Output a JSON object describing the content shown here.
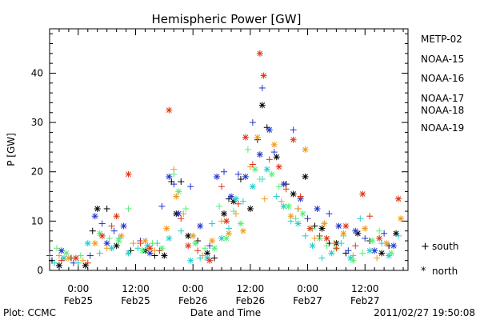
{
  "chart_data": {
    "type": "scatter",
    "title": "Hemispheric Power [GW]",
    "ylabel": "P [GW]",
    "xlabel": "Date and Time",
    "footer_left": "Plot: CCMC",
    "footer_right": "2011/02/27 19:50:08",
    "ylim": [
      0,
      49
    ],
    "yticks": [
      0,
      10,
      20,
      30,
      40
    ],
    "x_unit": "hours since 2011-02-24 18:00",
    "xlim": [
      0,
      75
    ],
    "xticks": [
      {
        "x": 6,
        "time": "0:00",
        "date": "Feb25"
      },
      {
        "x": 18,
        "time": "12:00",
        "date": "Feb25"
      },
      {
        "x": 30,
        "time": "0:00",
        "date": "Feb26"
      },
      {
        "x": 42,
        "time": "12:00",
        "date": "Feb26"
      },
      {
        "x": 54,
        "time": "0:00",
        "date": "Feb27"
      },
      {
        "x": 66,
        "time": "12:00",
        "date": "Feb27"
      }
    ],
    "series": [
      {
        "name": "METP-02",
        "color": "#000000"
      },
      {
        "name": "NOAA-15",
        "color": "#2233cc"
      },
      {
        "name": "NOAA-16",
        "color": "#22cccc"
      },
      {
        "name": "NOAA-17",
        "color": "#55ee77"
      },
      {
        "name": "NOAA-18",
        "color": "#ee9922"
      },
      {
        "name": "NOAA-19",
        "color": "#dd3311"
      }
    ],
    "markers": [
      {
        "symbol": "+",
        "label": "south"
      },
      {
        "symbol": "*",
        "label": "north"
      }
    ],
    "points": [
      [
        0,
        "+",
        0.5,
        2.0
      ],
      [
        0,
        "*",
        2.0,
        1.0
      ],
      [
        0,
        "+",
        4.5,
        2.5
      ],
      [
        0,
        "*",
        7.5,
        1.0
      ],
      [
        0,
        "+",
        9.0,
        8.0
      ],
      [
        0,
        "*",
        10.0,
        12.5
      ],
      [
        0,
        "+",
        12.0,
        12.5
      ],
      [
        0,
        "*",
        14.0,
        5.0
      ],
      [
        0,
        "+",
        17.0,
        4.0
      ],
      [
        0,
        "*",
        20.0,
        4.0
      ],
      [
        0,
        "+",
        22.0,
        3.0
      ],
      [
        0,
        "*",
        24.0,
        3.0
      ],
      [
        0,
        "+",
        25.5,
        18.0
      ],
      [
        0,
        "*",
        26.5,
        11.5
      ],
      [
        0,
        "+",
        27.5,
        18.0
      ],
      [
        0,
        "*",
        29.0,
        7.0
      ],
      [
        0,
        "+",
        31.0,
        6.0
      ],
      [
        0,
        "*",
        33.0,
        3.5
      ],
      [
        0,
        "+",
        34.5,
        2.5
      ],
      [
        0,
        "*",
        36.5,
        11.5
      ],
      [
        0,
        "+",
        37.5,
        14.5
      ],
      [
        0,
        "*",
        38.5,
        14.0
      ],
      [
        0,
        "+",
        40.0,
        18.5
      ],
      [
        0,
        "*",
        42.0,
        12.5
      ],
      [
        0,
        "+",
        43.5,
        26.5
      ],
      [
        0,
        "*",
        44.5,
        33.5
      ],
      [
        0,
        "+",
        45.5,
        29.0
      ],
      [
        0,
        "*",
        47.5,
        23.0
      ],
      [
        0,
        "+",
        49.5,
        17.5
      ],
      [
        0,
        "*",
        51.0,
        15.5
      ],
      [
        0,
        "+",
        52.0,
        12.5
      ],
      [
        0,
        "*",
        53.5,
        19.0
      ],
      [
        0,
        "+",
        55.5,
        9.0
      ],
      [
        0,
        "*",
        57.0,
        8.5
      ],
      [
        0,
        "+",
        58.5,
        5.5
      ],
      [
        0,
        "*",
        60.0,
        5.5
      ],
      [
        0,
        "+",
        62.0,
        3.5
      ],
      [
        0,
        "*",
        64.5,
        7.5
      ],
      [
        0,
        "+",
        67.0,
        6.0
      ],
      [
        0,
        "*",
        69.5,
        3.5
      ],
      [
        0,
        "+",
        71.0,
        5.0
      ],
      [
        0,
        "*",
        72.5,
        7.5
      ],
      [
        1,
        "+",
        0.0,
        3.0
      ],
      [
        1,
        "*",
        2.5,
        4.0
      ],
      [
        1,
        "+",
        5.0,
        1.5
      ],
      [
        1,
        "+",
        8.5,
        3.0
      ],
      [
        1,
        "*",
        9.5,
        11.0
      ],
      [
        1,
        "+",
        11.0,
        9.5
      ],
      [
        1,
        "*",
        12.0,
        5.5
      ],
      [
        1,
        "+",
        13.5,
        8.0
      ],
      [
        1,
        "*",
        15.5,
        9.0
      ],
      [
        1,
        "+",
        19.0,
        6.0
      ],
      [
        1,
        "*",
        21.0,
        3.5
      ],
      [
        1,
        "+",
        23.5,
        13.0
      ],
      [
        1,
        "*",
        25.0,
        19.0
      ],
      [
        1,
        "+",
        26.0,
        17.5
      ],
      [
        1,
        "*",
        27.0,
        11.5
      ],
      [
        1,
        "+",
        29.5,
        17.0
      ],
      [
        1,
        "*",
        31.5,
        9.0
      ],
      [
        1,
        "+",
        33.5,
        5.0
      ],
      [
        1,
        "*",
        35.0,
        19.0
      ],
      [
        1,
        "+",
        36.5,
        20.0
      ],
      [
        1,
        "*",
        38.0,
        15.0
      ],
      [
        1,
        "+",
        39.5,
        19.5
      ],
      [
        1,
        "*",
        41.0,
        19.0
      ],
      [
        1,
        "+",
        42.5,
        30.0
      ],
      [
        1,
        "*",
        44.0,
        23.5
      ],
      [
        1,
        "+",
        44.5,
        37.0
      ],
      [
        1,
        "*",
        46.0,
        28.5
      ],
      [
        1,
        "+",
        47.0,
        24.0
      ],
      [
        1,
        "*",
        49.0,
        17.5
      ],
      [
        1,
        "+",
        51.0,
        28.5
      ],
      [
        1,
        "*",
        52.5,
        14.5
      ],
      [
        1,
        "+",
        54.0,
        10.5
      ],
      [
        1,
        "*",
        56.0,
        12.5
      ],
      [
        1,
        "+",
        58.5,
        11.5
      ],
      [
        1,
        "*",
        60.5,
        9.0
      ],
      [
        1,
        "+",
        62.5,
        4.0
      ],
      [
        1,
        "*",
        64.0,
        8.0
      ],
      [
        1,
        "+",
        66.0,
        6.5
      ],
      [
        1,
        "*",
        68.0,
        4.0
      ],
      [
        1,
        "+",
        70.0,
        7.5
      ],
      [
        1,
        "*",
        72.0,
        5.0
      ],
      [
        2,
        "+",
        1.0,
        1.5
      ],
      [
        2,
        "*",
        3.0,
        2.5
      ],
      [
        2,
        "+",
        6.0,
        1.5
      ],
      [
        2,
        "*",
        8.0,
        5.5
      ],
      [
        2,
        "+",
        10.5,
        3.5
      ],
      [
        2,
        "*",
        13.0,
        4.5
      ],
      [
        2,
        "+",
        14.5,
        6.5
      ],
      [
        2,
        "*",
        16.5,
        3.5
      ],
      [
        2,
        "+",
        18.5,
        4.5
      ],
      [
        2,
        "*",
        20.5,
        5.0
      ],
      [
        2,
        "+",
        22.5,
        5.5
      ],
      [
        2,
        "*",
        25.0,
        6.5
      ],
      [
        2,
        "+",
        27.5,
        8.0
      ],
      [
        2,
        "*",
        29.5,
        2.0
      ],
      [
        2,
        "+",
        31.5,
        2.5
      ],
      [
        2,
        "*",
        33.0,
        2.5
      ],
      [
        2,
        "+",
        34.0,
        9.5
      ],
      [
        2,
        "*",
        36.0,
        6.5
      ],
      [
        2,
        "+",
        37.5,
        8.5
      ],
      [
        2,
        "*",
        39.0,
        14.5
      ],
      [
        2,
        "+",
        40.5,
        14.0
      ],
      [
        2,
        "*",
        42.5,
        17.0
      ],
      [
        2,
        "+",
        44.5,
        18.5
      ],
      [
        2,
        "*",
        45.5,
        20.5
      ],
      [
        2,
        "+",
        47.5,
        15.0
      ],
      [
        2,
        "*",
        49.0,
        13.0
      ],
      [
        2,
        "+",
        50.5,
        10.0
      ],
      [
        2,
        "*",
        52.0,
        9.5
      ],
      [
        2,
        "+",
        53.5,
        7.0
      ],
      [
        2,
        "*",
        55.0,
        5.0
      ],
      [
        2,
        "+",
        57.0,
        2.5
      ],
      [
        2,
        "*",
        59.0,
        3.5
      ],
      [
        2,
        "+",
        61.0,
        5.5
      ],
      [
        2,
        "*",
        63.0,
        2.5
      ],
      [
        2,
        "+",
        65.0,
        10.5
      ],
      [
        2,
        "*",
        67.0,
        4.0
      ],
      [
        2,
        "+",
        69.5,
        5.5
      ],
      [
        2,
        "*",
        71.0,
        3.0
      ],
      [
        2,
        "+",
        73.0,
        7.0
      ],
      [
        3,
        "+",
        1.5,
        4.5
      ],
      [
        3,
        "*",
        3.5,
        3.5
      ],
      [
        3,
        "+",
        6.5,
        3.0
      ],
      [
        3,
        "*",
        10.5,
        7.5
      ],
      [
        3,
        "+",
        12.5,
        6.5
      ],
      [
        3,
        "*",
        14.5,
        6.0
      ],
      [
        3,
        "+",
        16.5,
        12.5
      ],
      [
        3,
        "*",
        19.5,
        4.0
      ],
      [
        3,
        "+",
        21.5,
        5.5
      ],
      [
        3,
        "*",
        23.5,
        4.5
      ],
      [
        3,
        "+",
        26.0,
        19.5
      ],
      [
        3,
        "*",
        27.0,
        16.0
      ],
      [
        3,
        "+",
        28.5,
        12.5
      ],
      [
        3,
        "*",
        30.5,
        5.5
      ],
      [
        3,
        "+",
        32.5,
        4.5
      ],
      [
        3,
        "*",
        34.5,
        4.5
      ],
      [
        3,
        "+",
        35.5,
        13.0
      ],
      [
        3,
        "*",
        37.0,
        6.5
      ],
      [
        3,
        "+",
        38.5,
        12.0
      ],
      [
        3,
        "*",
        40.0,
        9.5
      ],
      [
        3,
        "+",
        41.5,
        24.5
      ],
      [
        3,
        "*",
        43.0,
        20.5
      ],
      [
        3,
        "+",
        44.0,
        18.5
      ],
      [
        3,
        "*",
        46.5,
        19.5
      ],
      [
        3,
        "+",
        48.0,
        17.0
      ],
      [
        3,
        "*",
        50.0,
        13.0
      ],
      [
        3,
        "+",
        51.5,
        10.5
      ],
      [
        3,
        "*",
        53.0,
        11.5
      ],
      [
        3,
        "+",
        55.0,
        8.5
      ],
      [
        3,
        "*",
        56.5,
        6.5
      ],
      [
        3,
        "+",
        58.0,
        5.0
      ],
      [
        3,
        "*",
        60.0,
        4.5
      ],
      [
        3,
        "+",
        61.5,
        7.0
      ],
      [
        3,
        "*",
        63.5,
        2.0
      ],
      [
        3,
        "+",
        65.5,
        3.5
      ],
      [
        3,
        "*",
        67.5,
        6.0
      ],
      [
        3,
        "+",
        69.0,
        8.0
      ],
      [
        3,
        "*",
        71.5,
        3.5
      ],
      [
        4,
        "+",
        2.0,
        3.0
      ],
      [
        4,
        "*",
        4.0,
        2.5
      ],
      [
        4,
        "+",
        7.0,
        2.0
      ],
      [
        4,
        "*",
        9.5,
        5.5
      ],
      [
        4,
        "+",
        12.0,
        4.5
      ],
      [
        4,
        "*",
        15.0,
        7.0
      ],
      [
        4,
        "+",
        17.5,
        5.5
      ],
      [
        4,
        "*",
        20.0,
        6.0
      ],
      [
        4,
        "+",
        22.0,
        4.0
      ],
      [
        4,
        "*",
        24.5,
        8.5
      ],
      [
        4,
        "+",
        26.0,
        20.5
      ],
      [
        4,
        "*",
        26.5,
        15.0
      ],
      [
        4,
        "+",
        28.0,
        11.5
      ],
      [
        4,
        "*",
        30.0,
        7.0
      ],
      [
        4,
        "+",
        32.0,
        3.0
      ],
      [
        4,
        "*",
        34.0,
        6.0
      ],
      [
        4,
        "+",
        36.0,
        10.0
      ],
      [
        4,
        "*",
        37.5,
        7.5
      ],
      [
        4,
        "+",
        39.0,
        11.5
      ],
      [
        4,
        "*",
        40.5,
        8.0
      ],
      [
        4,
        "+",
        42.0,
        21.0
      ],
      [
        4,
        "*",
        43.5,
        27.0
      ],
      [
        4,
        "+",
        45.0,
        14.5
      ],
      [
        4,
        "*",
        47.0,
        25.5
      ],
      [
        4,
        "+",
        48.5,
        14.0
      ],
      [
        4,
        "*",
        50.5,
        11.0
      ],
      [
        4,
        "+",
        52.0,
        12.5
      ],
      [
        4,
        "*",
        53.5,
        24.5
      ],
      [
        4,
        "+",
        55.5,
        6.5
      ],
      [
        4,
        "*",
        57.5,
        9.5
      ],
      [
        4,
        "+",
        59.5,
        5.5
      ],
      [
        4,
        "*",
        61.5,
        7.5
      ],
      [
        4,
        "+",
        63.5,
        3.0
      ],
      [
        4,
        "*",
        66.0,
        8.5
      ],
      [
        4,
        "+",
        68.5,
        2.5
      ],
      [
        4,
        "*",
        70.5,
        5.5
      ],
      [
        4,
        "*",
        73.5,
        10.5
      ],
      [
        5,
        "+",
        2.5,
        2.0
      ],
      [
        5,
        "*",
        5.5,
        2.5
      ],
      [
        5,
        "+",
        8.0,
        1.5
      ],
      [
        5,
        "*",
        11.0,
        7.0
      ],
      [
        5,
        "+",
        13.0,
        9.0
      ],
      [
        5,
        "*",
        14.0,
        11.0
      ],
      [
        5,
        "*",
        16.5,
        19.5
      ],
      [
        5,
        "+",
        19.0,
        5.5
      ],
      [
        5,
        "*",
        21.0,
        4.5
      ],
      [
        5,
        "+",
        23.0,
        4.0
      ],
      [
        5,
        "*",
        25.0,
        32.5
      ],
      [
        5,
        "+",
        27.5,
        10.5
      ],
      [
        5,
        "*",
        29.0,
        5.0
      ],
      [
        5,
        "+",
        31.0,
        4.0
      ],
      [
        5,
        "*",
        33.5,
        2.0
      ],
      [
        5,
        "+",
        36.0,
        17.0
      ],
      [
        5,
        "*",
        37.0,
        10.0
      ],
      [
        5,
        "+",
        39.5,
        13.5
      ],
      [
        5,
        "*",
        41.0,
        27.0
      ],
      [
        5,
        "+",
        42.5,
        21.5
      ],
      [
        5,
        "*",
        44.0,
        44.0
      ],
      [
        5,
        "*",
        44.8,
        39.5
      ],
      [
        5,
        "+",
        46.0,
        22.5
      ],
      [
        5,
        "*",
        48.0,
        21.0
      ],
      [
        5,
        "+",
        49.5,
        16.5
      ],
      [
        5,
        "*",
        51.0,
        26.5
      ],
      [
        5,
        "+",
        52.5,
        15.0
      ],
      [
        5,
        "*",
        54.5,
        8.5
      ],
      [
        5,
        "+",
        56.5,
        7.0
      ],
      [
        5,
        "*",
        58.0,
        6.5
      ],
      [
        5,
        "+",
        60.0,
        4.5
      ],
      [
        5,
        "*",
        62.0,
        9.0
      ],
      [
        5,
        "+",
        64.0,
        5.0
      ],
      [
        5,
        "*",
        65.5,
        15.5
      ],
      [
        5,
        "+",
        67.0,
        11.0
      ],
      [
        5,
        "*",
        69.0,
        6.5
      ],
      [
        5,
        "*",
        73.0,
        14.5
      ]
    ]
  }
}
